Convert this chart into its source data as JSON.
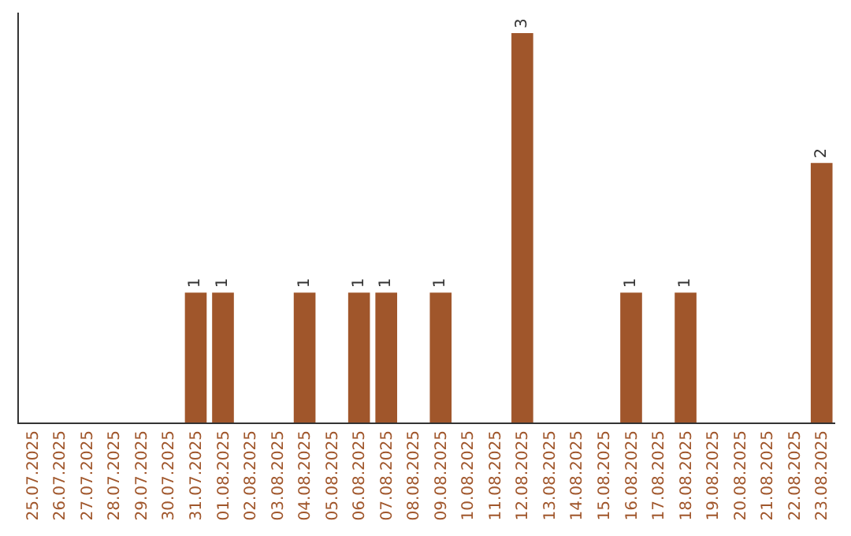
{
  "chart_data": {
    "type": "bar",
    "categories": [
      "25.07.2025",
      "26.07.2025",
      "27.07.2025",
      "28.07.2025",
      "29.07.2025",
      "30.07.2025",
      "31.07.2025",
      "01.08.2025",
      "02.08.2025",
      "03.08.2025",
      "04.08.2025",
      "05.08.2025",
      "06.08.2025",
      "07.08.2025",
      "08.08.2025",
      "09.08.2025",
      "10.08.2025",
      "11.08.2025",
      "12.08.2025",
      "13.08.2025",
      "14.08.2025",
      "15.08.2025",
      "16.08.2025",
      "17.08.2025",
      "18.08.2025",
      "19.08.2025",
      "20.08.2025",
      "21.08.2025",
      "22.08.2025",
      "23.08.2025"
    ],
    "values": [
      0,
      0,
      0,
      0,
      0,
      0,
      1,
      1,
      0,
      0,
      1,
      0,
      1,
      1,
      0,
      1,
      0,
      0,
      3,
      0,
      0,
      0,
      1,
      0,
      1,
      0,
      0,
      0,
      0,
      2
    ],
    "value_labels": [
      null,
      null,
      null,
      null,
      null,
      null,
      "1",
      "1",
      null,
      null,
      "1",
      null,
      "1",
      "1",
      null,
      "1",
      null,
      null,
      "3",
      null,
      null,
      null,
      "1",
      null,
      "1",
      null,
      null,
      null,
      null,
      "2"
    ],
    "color": "#a0562b",
    "grid": false,
    "tick_labels": "x"
  }
}
